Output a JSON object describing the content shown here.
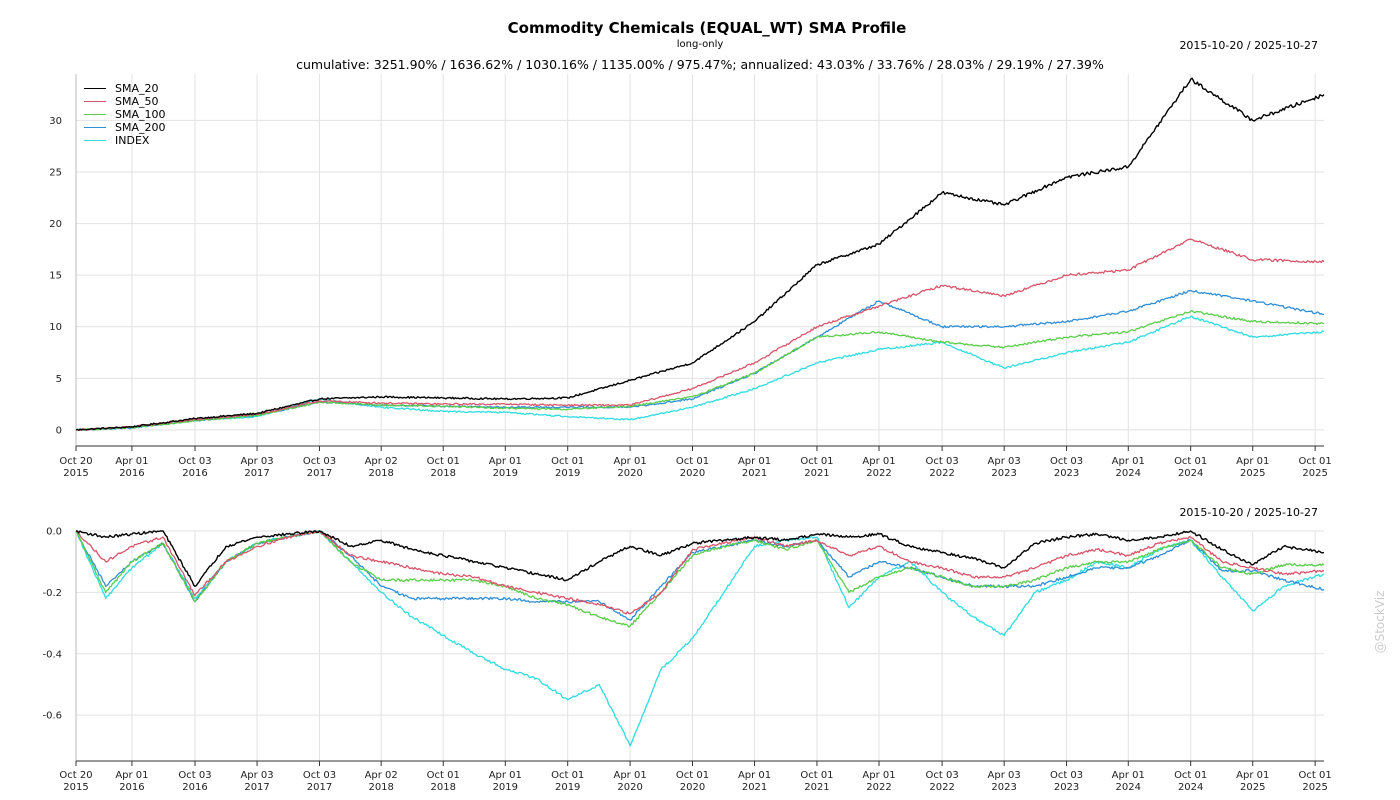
{
  "title": "Commodity Chemicals (EQUAL_WT) SMA Profile",
  "subtitle": "long-only",
  "stats": "cumulative: 3251.90% / 1636.62% / 1030.16% / 1135.00% / 975.47%; annualized: 43.03% / 33.76% / 28.03% / 29.19% / 27.39%",
  "date_range": "2015-10-20 / 2025-10-27",
  "watermark": "@StockViz",
  "colors": {
    "SMA_20": "#000000",
    "SMA_50": "#d9546a",
    "SMA_100": "#5acd4a",
    "SMA_200": "#2f8fd6",
    "INDEX": "#2fdce0"
  },
  "chart_data": [
    {
      "type": "line",
      "title": "",
      "ylim": [
        -0.3,
        34.5
      ],
      "yticks": [
        0,
        5,
        10,
        15,
        20,
        25,
        30
      ],
      "grid": true,
      "legend": "top-left",
      "x_tick_labels": [
        [
          "Oct 20",
          "2015"
        ],
        [
          "Apr 01",
          "2016"
        ],
        [
          "Oct 03",
          "2016"
        ],
        [
          "Apr 03",
          "2017"
        ],
        [
          "Oct 03",
          "2017"
        ],
        [
          "Apr 02",
          "2018"
        ],
        [
          "Oct 01",
          "2018"
        ],
        [
          "Apr 01",
          "2019"
        ],
        [
          "Oct 01",
          "2019"
        ],
        [
          "Apr 01",
          "2020"
        ],
        [
          "Oct 01",
          "2020"
        ],
        [
          "Apr 01",
          "2021"
        ],
        [
          "Oct 01",
          "2021"
        ],
        [
          "Apr 01",
          "2022"
        ],
        [
          "Oct 03",
          "2022"
        ],
        [
          "Apr 03",
          "2023"
        ],
        [
          "Oct 03",
          "2023"
        ],
        [
          "Apr 01",
          "2024"
        ],
        [
          "Oct 01",
          "2024"
        ],
        [
          "Apr 01",
          "2025"
        ],
        [
          "Oct 01",
          "2025"
        ]
      ],
      "x": [
        "2015-10-20",
        "2016-04-01",
        "2016-10-03",
        "2017-04-03",
        "2017-10-03",
        "2018-04-02",
        "2018-10-01",
        "2019-04-01",
        "2019-10-01",
        "2020-04-01",
        "2020-10-01",
        "2021-04-01",
        "2021-10-01",
        "2022-04-01",
        "2022-10-03",
        "2023-04-03",
        "2023-10-03",
        "2024-04-01",
        "2024-10-01",
        "2025-04-01",
        "2025-10-27"
      ],
      "series": [
        {
          "name": "SMA_20",
          "values": [
            0,
            0.3,
            1.1,
            1.6,
            3.0,
            3.2,
            3.1,
            3.0,
            3.1,
            4.8,
            6.5,
            10.5,
            16.0,
            18.0,
            23.0,
            21.8,
            24.5,
            25.5,
            34.0,
            30.0,
            32.5
          ]
        },
        {
          "name": "SMA_50",
          "values": [
            0,
            0.3,
            1.0,
            1.5,
            2.8,
            2.6,
            2.5,
            2.5,
            2.4,
            2.4,
            4.0,
            6.5,
            10.0,
            12.0,
            14.0,
            13.0,
            15.0,
            15.5,
            18.5,
            16.5,
            16.3
          ]
        },
        {
          "name": "SMA_100",
          "values": [
            0,
            0.2,
            0.9,
            1.4,
            2.7,
            2.4,
            2.3,
            2.1,
            2.0,
            2.3,
            3.2,
            5.5,
            9.0,
            9.5,
            8.5,
            8.0,
            9.0,
            9.5,
            11.5,
            10.5,
            10.3
          ]
        },
        {
          "name": "SMA_200",
          "values": [
            0,
            0.2,
            0.9,
            1.4,
            2.7,
            2.4,
            2.3,
            2.2,
            2.2,
            2.2,
            3.0,
            5.5,
            9.0,
            12.5,
            10.0,
            10.0,
            10.5,
            11.5,
            13.5,
            12.5,
            11.2
          ]
        },
        {
          "name": "INDEX",
          "values": [
            0,
            0.2,
            0.9,
            1.3,
            3.0,
            2.2,
            1.8,
            1.7,
            1.3,
            1.0,
            2.2,
            4.0,
            6.5,
            7.8,
            8.5,
            6.0,
            7.5,
            8.5,
            11.0,
            9.0,
            9.5
          ]
        }
      ]
    },
    {
      "type": "line",
      "title": "",
      "ylim": [
        -0.72,
        0.0
      ],
      "yticks": [
        0.0,
        -0.2,
        -0.4,
        -0.6
      ],
      "ytick_labels": [
        "0.0",
        "-0.2",
        "-0.4",
        "-0.6"
      ],
      "grid": true,
      "x": [
        "2015-10-20",
        "2016-01-15",
        "2016-04-01",
        "2016-07-01",
        "2016-10-03",
        "2017-01-02",
        "2017-04-03",
        "2017-07-03",
        "2017-10-03",
        "2018-01-02",
        "2018-04-02",
        "2018-07-02",
        "2018-10-01",
        "2019-01-01",
        "2019-04-01",
        "2019-07-01",
        "2019-10-01",
        "2020-01-01",
        "2020-04-01",
        "2020-07-01",
        "2020-10-01",
        "2021-01-01",
        "2021-04-01",
        "2021-07-01",
        "2021-10-01",
        "2022-01-03",
        "2022-04-01",
        "2022-07-01",
        "2022-10-03",
        "2023-01-02",
        "2023-04-03",
        "2023-07-03",
        "2023-10-03",
        "2024-01-01",
        "2024-04-01",
        "2024-07-01",
        "2024-10-01",
        "2025-01-01",
        "2025-04-01",
        "2025-07-01",
        "2025-10-27"
      ],
      "series": [
        {
          "name": "SMA_20",
          "values": [
            0,
            -0.02,
            -0.01,
            0,
            -0.18,
            -0.05,
            -0.02,
            -0.01,
            0,
            -0.05,
            -0.03,
            -0.06,
            -0.08,
            -0.1,
            -0.12,
            -0.14,
            -0.16,
            -0.1,
            -0.05,
            -0.08,
            -0.04,
            -0.03,
            -0.02,
            -0.03,
            -0.01,
            -0.02,
            -0.01,
            -0.05,
            -0.07,
            -0.09,
            -0.12,
            -0.04,
            -0.02,
            -0.01,
            -0.03,
            -0.02,
            0,
            -0.06,
            -0.11,
            -0.05,
            -0.07
          ]
        },
        {
          "name": "SMA_50",
          "values": [
            0,
            -0.1,
            -0.05,
            -0.02,
            -0.21,
            -0.1,
            -0.05,
            -0.02,
            0,
            -0.08,
            -0.1,
            -0.12,
            -0.14,
            -0.15,
            -0.18,
            -0.2,
            -0.22,
            -0.24,
            -0.27,
            -0.2,
            -0.06,
            -0.04,
            -0.02,
            -0.05,
            -0.03,
            -0.08,
            -0.05,
            -0.1,
            -0.12,
            -0.15,
            -0.15,
            -0.12,
            -0.08,
            -0.06,
            -0.08,
            -0.04,
            -0.02,
            -0.1,
            -0.12,
            -0.14,
            -0.13
          ]
        },
        {
          "name": "SMA_100",
          "values": [
            0,
            -0.2,
            -0.1,
            -0.04,
            -0.23,
            -0.1,
            -0.04,
            -0.02,
            0,
            -0.1,
            -0.16,
            -0.16,
            -0.16,
            -0.16,
            -0.18,
            -0.22,
            -0.24,
            -0.28,
            -0.31,
            -0.2,
            -0.08,
            -0.05,
            -0.03,
            -0.06,
            -0.03,
            -0.2,
            -0.15,
            -0.12,
            -0.15,
            -0.18,
            -0.18,
            -0.16,
            -0.12,
            -0.1,
            -0.1,
            -0.06,
            -0.03,
            -0.12,
            -0.14,
            -0.11,
            -0.11
          ]
        },
        {
          "name": "SMA_200",
          "values": [
            0,
            -0.18,
            -0.1,
            -0.04,
            -0.23,
            -0.1,
            -0.04,
            -0.02,
            0,
            -0.08,
            -0.18,
            -0.22,
            -0.22,
            -0.22,
            -0.22,
            -0.23,
            -0.23,
            -0.23,
            -0.29,
            -0.18,
            -0.07,
            -0.05,
            -0.03,
            -0.05,
            -0.03,
            -0.15,
            -0.1,
            -0.12,
            -0.15,
            -0.18,
            -0.18,
            -0.18,
            -0.15,
            -0.12,
            -0.12,
            -0.08,
            -0.03,
            -0.13,
            -0.13,
            -0.16,
            -0.19
          ]
        },
        {
          "name": "INDEX",
          "values": [
            0,
            -0.22,
            -0.12,
            -0.04,
            -0.22,
            -0.1,
            -0.04,
            -0.02,
            0,
            -0.1,
            -0.2,
            -0.28,
            -0.34,
            -0.4,
            -0.45,
            -0.48,
            -0.55,
            -0.5,
            -0.7,
            -0.45,
            -0.35,
            -0.2,
            -0.05,
            -0.03,
            -0.02,
            -0.25,
            -0.15,
            -0.1,
            -0.2,
            -0.28,
            -0.34,
            -0.2,
            -0.16,
            -0.1,
            -0.12,
            -0.06,
            -0.03,
            -0.15,
            -0.26,
            -0.18,
            -0.14
          ]
        }
      ]
    }
  ]
}
